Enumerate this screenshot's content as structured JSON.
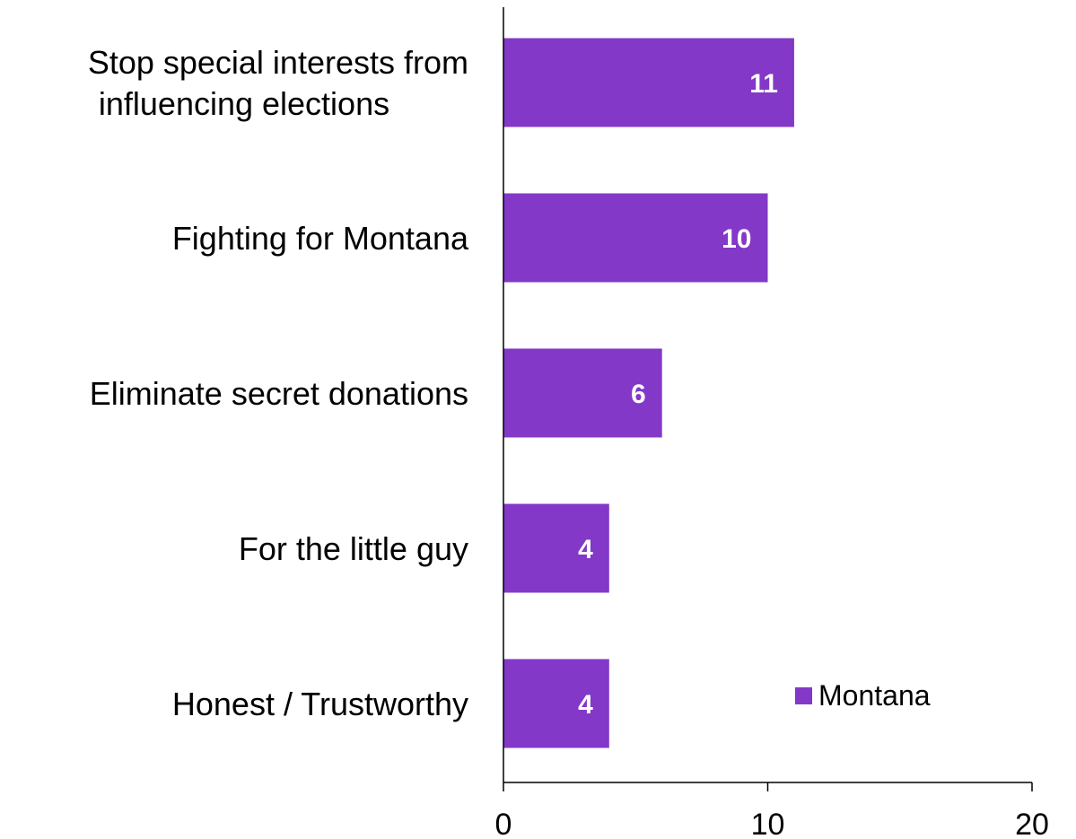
{
  "chart_data": {
    "type": "bar",
    "orientation": "horizontal",
    "categories": [
      "Stop special interests from influencing elections",
      "Fighting for Montana",
      "Eliminate secret donations",
      "For the little guy",
      "Honest / Trustworthy"
    ],
    "series": [
      {
        "name": "Montana",
        "values": [
          11,
          10,
          6,
          4,
          4
        ],
        "color": "#8338C8"
      }
    ],
    "data_labels": [
      "11",
      "10",
      "6",
      "4",
      "4"
    ],
    "xlim": [
      0,
      20
    ],
    "x_ticks": [
      0,
      10,
      20
    ],
    "grid": false,
    "legend_position": "bottom-right",
    "title": "",
    "xlabel": "",
    "ylabel": ""
  }
}
